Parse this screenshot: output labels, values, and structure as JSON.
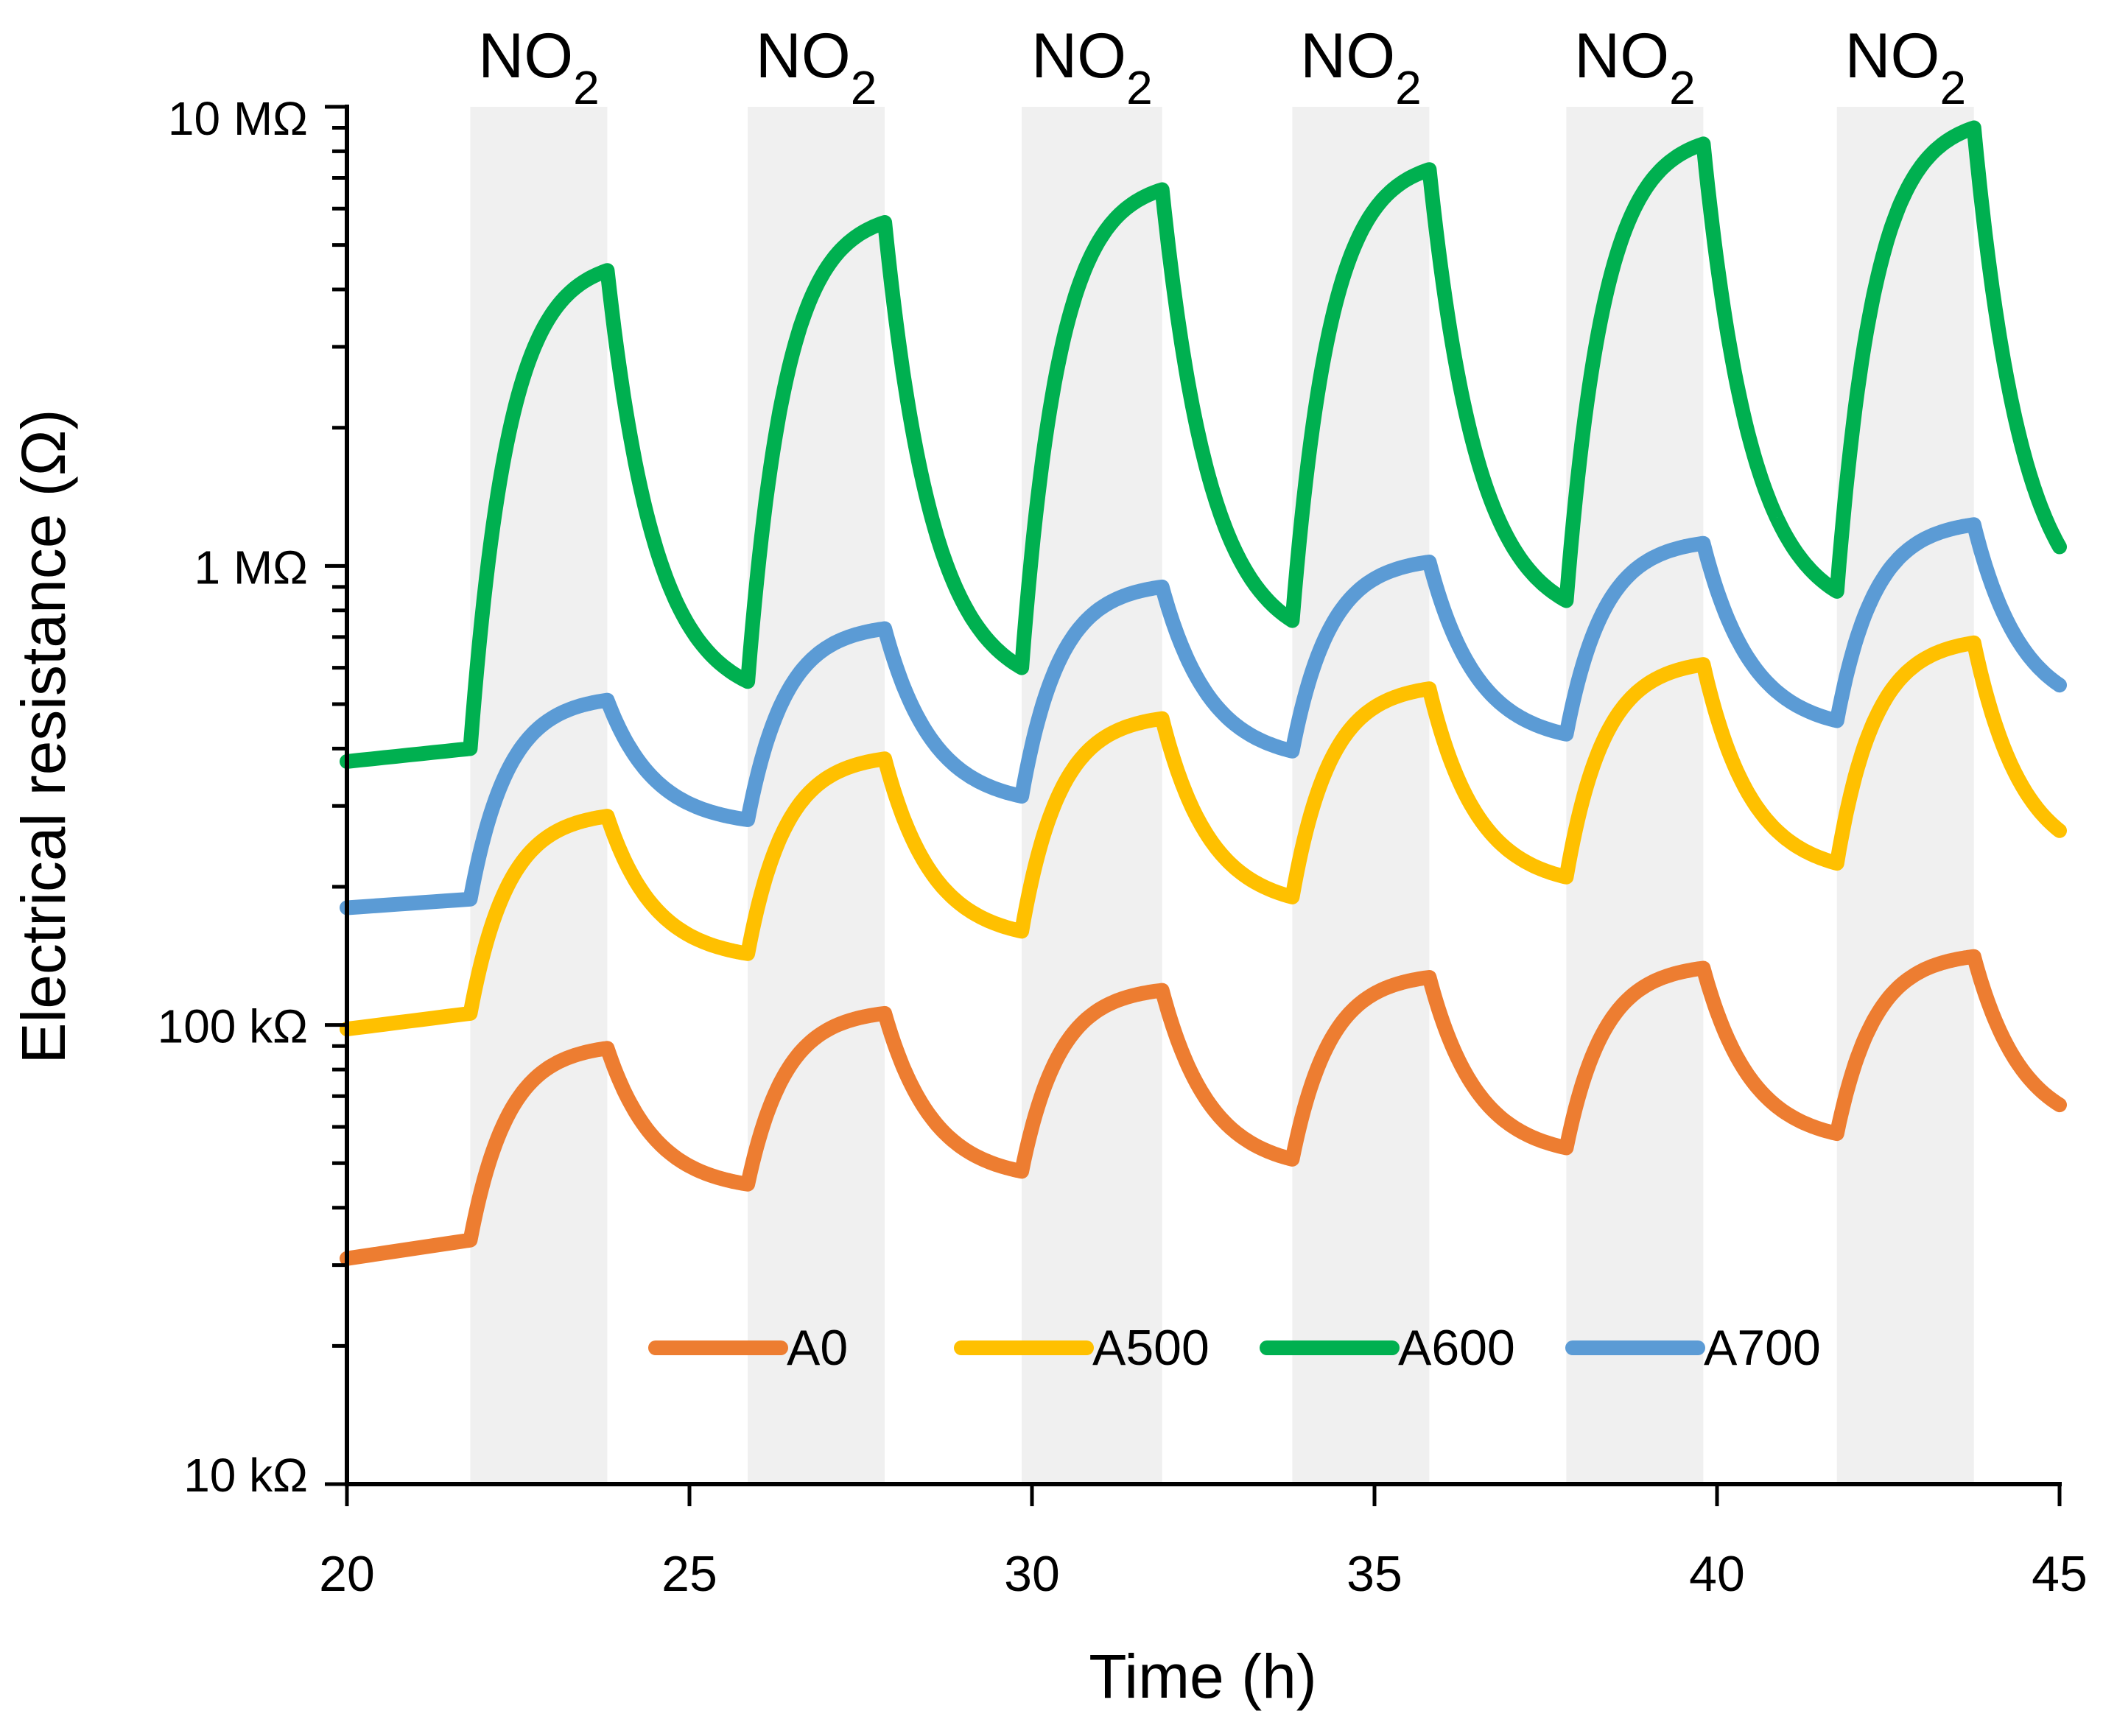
{
  "chart_data": {
    "type": "line",
    "title": "",
    "xlabel": "Time (h)",
    "ylabel": "Electrical resistance (Ω)",
    "xlim": [
      20,
      45
    ],
    "ylim": [
      10000,
      10000000
    ],
    "yscale": "log",
    "x_ticks": [
      20,
      25,
      30,
      35,
      40,
      45
    ],
    "x_tick_labels": [
      "20",
      "25",
      "30",
      "35",
      "40",
      "45"
    ],
    "y_ticks": [
      10000,
      100000,
      1000000,
      10000000
    ],
    "y_tick_labels": [
      "10 kΩ",
      "100 kΩ",
      "1 MΩ",
      "10 MΩ"
    ],
    "exposure_label": "NO",
    "exposure_subscript": "2",
    "exposure_windows": [
      [
        21.8,
        23.8
      ],
      [
        25.85,
        27.85
      ],
      [
        29.85,
        31.9
      ],
      [
        33.8,
        35.8
      ],
      [
        37.8,
        39.8
      ],
      [
        41.75,
        43.75
      ]
    ],
    "legend_position": "bottom-center",
    "series": [
      {
        "name": "A0",
        "color": "#ED7D31",
        "start": [
          20,
          31000
        ],
        "cycles": [
          {
            "on": 21.8,
            "off": 23.8,
            "base": 34000,
            "peak": 89000
          },
          {
            "on": 25.85,
            "off": 27.85,
            "base": 45000,
            "peak": 106000
          },
          {
            "on": 29.85,
            "off": 31.9,
            "base": 48000,
            "peak": 119000
          },
          {
            "on": 33.8,
            "off": 35.8,
            "base": 51000,
            "peak": 127000
          },
          {
            "on": 37.8,
            "off": 39.8,
            "base": 54000,
            "peak": 133000
          },
          {
            "on": 41.75,
            "off": 43.75,
            "base": 58000,
            "peak": 141000
          }
        ],
        "end": [
          45,
          67000
        ]
      },
      {
        "name": "A500",
        "color": "#FFC000",
        "start": [
          20,
          98000
        ],
        "cycles": [
          {
            "on": 21.8,
            "off": 23.8,
            "base": 106000,
            "peak": 285000
          },
          {
            "on": 25.85,
            "off": 27.85,
            "base": 143000,
            "peak": 380000
          },
          {
            "on": 29.85,
            "off": 31.9,
            "base": 160000,
            "peak": 465000
          },
          {
            "on": 33.8,
            "off": 35.8,
            "base": 190000,
            "peak": 540000
          },
          {
            "on": 37.8,
            "off": 39.8,
            "base": 210000,
            "peak": 610000
          },
          {
            "on": 41.75,
            "off": 43.75,
            "base": 225000,
            "peak": 680000
          }
        ],
        "end": [
          45,
          265000
        ]
      },
      {
        "name": "A600",
        "color": "#00B050",
        "start": [
          20,
          375000
        ],
        "cycles": [
          {
            "on": 21.8,
            "off": 23.8,
            "base": 400000,
            "peak": 4400000
          },
          {
            "on": 25.85,
            "off": 27.85,
            "base": 560000,
            "peak": 5600000
          },
          {
            "on": 29.85,
            "off": 31.9,
            "base": 600000,
            "peak": 6600000
          },
          {
            "on": 33.8,
            "off": 35.8,
            "base": 760000,
            "peak": 7300000
          },
          {
            "on": 37.8,
            "off": 39.8,
            "base": 840000,
            "peak": 8300000
          },
          {
            "on": 41.75,
            "off": 43.75,
            "base": 880000,
            "peak": 9000000
          }
        ],
        "end": [
          45,
          1100000
        ]
      },
      {
        "name": "A700",
        "color": "#5B9BD5",
        "start": [
          20,
          180000
        ],
        "cycles": [
          {
            "on": 21.8,
            "off": 23.8,
            "base": 188000,
            "peak": 510000
          },
          {
            "on": 25.85,
            "off": 27.85,
            "base": 280000,
            "peak": 730000
          },
          {
            "on": 29.85,
            "off": 31.9,
            "base": 315000,
            "peak": 900000
          },
          {
            "on": 33.8,
            "off": 35.8,
            "base": 395000,
            "peak": 1020000
          },
          {
            "on": 37.8,
            "off": 39.8,
            "base": 430000,
            "peak": 1120000
          },
          {
            "on": 41.75,
            "off": 43.75,
            "base": 460000,
            "peak": 1230000
          }
        ],
        "end": [
          45,
          550000
        ]
      }
    ]
  }
}
